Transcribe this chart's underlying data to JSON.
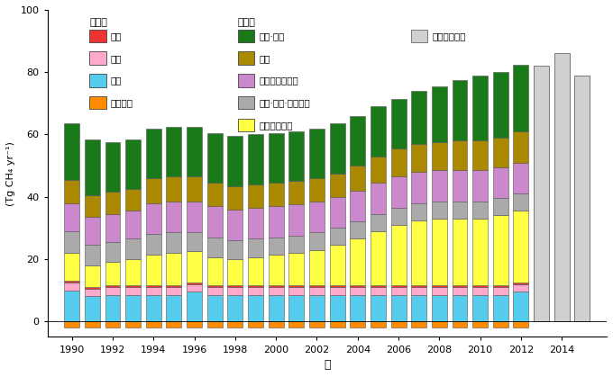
{
  "years": [
    1990,
    1991,
    1992,
    1993,
    1994,
    1995,
    1996,
    1997,
    1998,
    1999,
    2000,
    2001,
    2002,
    2003,
    2004,
    2005,
    2006,
    2007,
    2008,
    2009,
    2010,
    2011,
    2012
  ],
  "estimate_years": [
    2013,
    2014,
    2015
  ],
  "estimate_values": [
    82.0,
    86.0,
    79.0
  ],
  "categories": [
    "土壤氧化",
    "湿地",
    "白蚁",
    "火灾",
    "化石燃料开采",
    "工业·运输·城市活动",
    "垃圾及垃圾填埋",
    "家畜",
    "农业·水田"
  ],
  "colors": [
    "#FF8C00",
    "#55CCEE",
    "#FFAACC",
    "#EE3333",
    "#FFFF44",
    "#AAAAAA",
    "#CC88CC",
    "#AA8800",
    "#1A7A1A"
  ],
  "data": {
    "土壤氧化": [
      -2.0,
      -2.0,
      -2.0,
      -2.0,
      -2.0,
      -2.0,
      -2.0,
      -2.0,
      -2.0,
      -2.0,
      -2.0,
      -2.0,
      -2.0,
      -2.0,
      -2.0,
      -2.0,
      -2.0,
      -2.0,
      -2.0,
      -2.0,
      -2.0,
      -2.0,
      -2.0
    ],
    "湿地": [
      10.0,
      8.0,
      8.5,
      8.5,
      8.5,
      8.5,
      9.5,
      8.5,
      8.5,
      8.5,
      8.5,
      8.5,
      8.5,
      8.5,
      8.5,
      8.5,
      8.5,
      8.5,
      8.5,
      8.5,
      8.5,
      8.5,
      9.5
    ],
    "白蚁": [
      2.5,
      2.5,
      2.5,
      2.5,
      2.5,
      2.5,
      2.5,
      2.5,
      2.5,
      2.5,
      2.5,
      2.5,
      2.5,
      2.5,
      2.5,
      2.5,
      2.5,
      2.5,
      2.5,
      2.5,
      2.5,
      2.5,
      2.5
    ],
    "火灾": [
      0.5,
      0.5,
      0.5,
      0.5,
      0.5,
      0.5,
      0.5,
      0.5,
      0.5,
      0.5,
      0.5,
      0.5,
      0.5,
      0.5,
      0.5,
      0.5,
      0.5,
      0.5,
      0.5,
      0.5,
      0.5,
      0.5,
      0.5
    ],
    "化石燃料开采": [
      9.0,
      7.0,
      7.5,
      8.5,
      10.0,
      10.5,
      10.0,
      9.0,
      8.5,
      9.0,
      10.0,
      10.5,
      11.5,
      13.0,
      15.0,
      17.5,
      19.5,
      21.0,
      21.5,
      21.5,
      21.5,
      22.5,
      23.0
    ],
    "工业·运输·城市活动": [
      7.0,
      6.5,
      6.5,
      6.5,
      6.5,
      6.5,
      6.0,
      6.5,
      6.0,
      6.0,
      5.5,
      5.5,
      5.5,
      5.5,
      5.5,
      5.5,
      5.5,
      5.5,
      5.5,
      5.5,
      5.5,
      5.5,
      5.5
    ],
    "垃圾及垃圾填埋": [
      9.0,
      9.0,
      9.0,
      9.0,
      10.0,
      10.0,
      10.0,
      10.0,
      10.0,
      10.0,
      10.0,
      10.0,
      10.0,
      10.0,
      10.0,
      10.0,
      10.0,
      10.0,
      10.0,
      10.0,
      10.0,
      10.0,
      10.0
    ],
    "家畜": [
      7.5,
      7.0,
      7.0,
      7.0,
      8.0,
      8.0,
      8.0,
      7.5,
      7.5,
      7.5,
      7.5,
      7.5,
      7.5,
      7.5,
      8.0,
      8.5,
      9.0,
      9.0,
      9.0,
      9.5,
      9.5,
      9.5,
      10.0
    ],
    "农业·水田": [
      18.0,
      18.0,
      16.0,
      16.0,
      16.0,
      16.0,
      16.0,
      16.0,
      16.0,
      16.0,
      16.0,
      16.0,
      16.0,
      16.0,
      16.0,
      16.0,
      16.0,
      17.0,
      18.0,
      19.5,
      21.0,
      21.0,
      21.5
    ]
  },
  "ylim": [
    -5,
    100
  ],
  "yticks": [
    0,
    20,
    40,
    60,
    80,
    100
  ],
  "ylabel": "(Tg CH₄ yr⁻¹)",
  "xlabel": "年",
  "bg_color": "#FFFFFF",
  "bar_edge_color": "#555555",
  "bar_edge_width": 0.4,
  "xtick_years": [
    1990,
    1992,
    1994,
    1996,
    1998,
    2000,
    2002,
    2004,
    2006,
    2008,
    2010,
    2012,
    2014
  ]
}
